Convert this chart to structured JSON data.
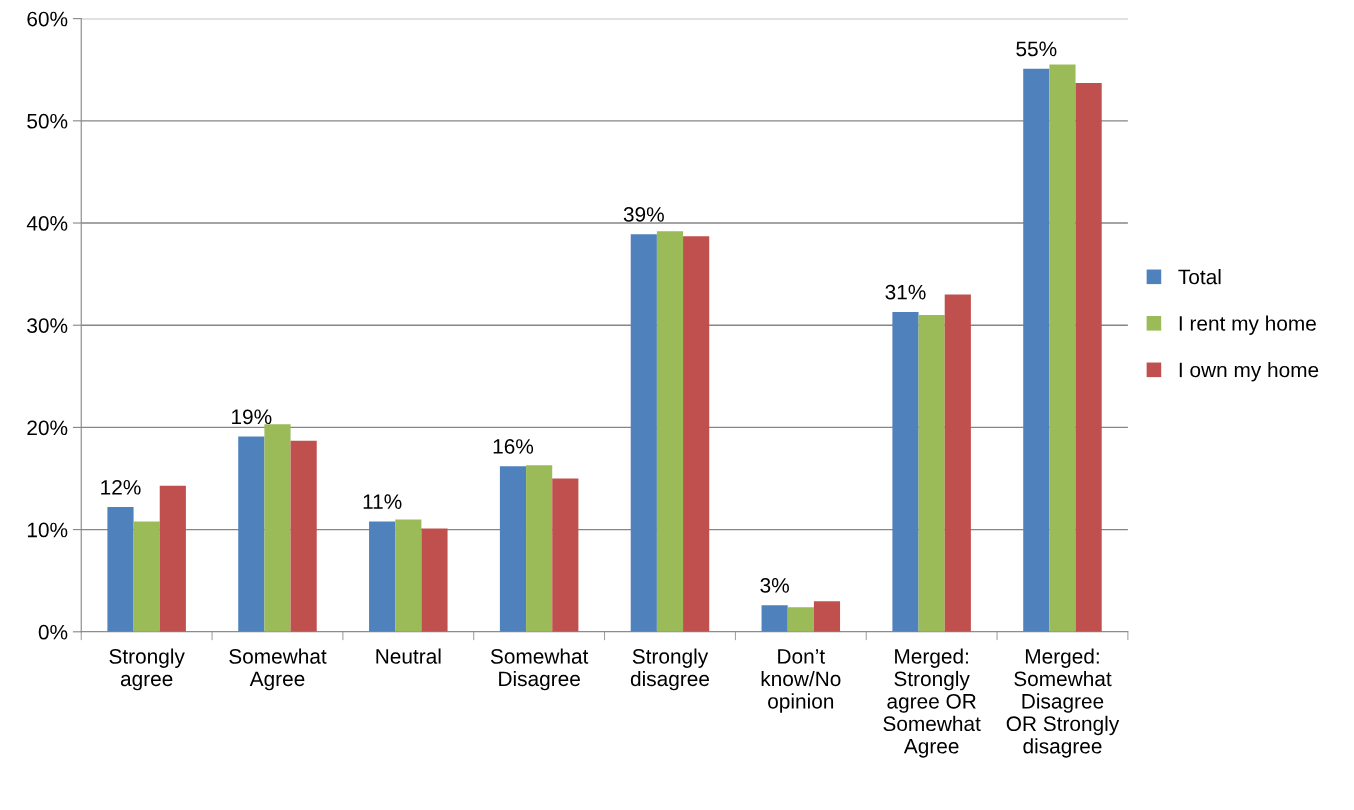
{
  "chart_data": {
    "type": "bar",
    "categories": [
      "Strongly\nagree",
      "Somewhat\nAgree",
      "Neutral",
      "Somewhat\nDisagree",
      "Strongly\ndisagree",
      "Don’t\nknow/No\nopinion",
      "Merged:\nStrongly\nagree OR\nSomewhat\nAgree",
      "Merged:\nSomewhat\nDisagree\nOR Strongly\ndisagree"
    ],
    "series": [
      {
        "name": "Total",
        "color": "#4f81bd",
        "values": [
          12.2,
          19.1,
          10.8,
          16.2,
          38.9,
          2.6,
          31.3,
          55.1
        ],
        "value_labels": [
          "12%",
          "19%",
          "11%",
          "16%",
          "39%",
          "3%",
          "31%",
          "55%"
        ]
      },
      {
        "name": "I rent my home",
        "color": "#9bbb59",
        "values": [
          10.8,
          20.3,
          11.0,
          16.3,
          39.2,
          2.4,
          31.0,
          55.5
        ]
      },
      {
        "name": "I own my home",
        "color": "#c0504d",
        "values": [
          14.3,
          18.7,
          10.1,
          15.0,
          38.7,
          3.0,
          33.0,
          53.7
        ]
      }
    ],
    "ylim": [
      0,
      60
    ],
    "yticks": [
      {
        "value": 0,
        "label": "0%"
      },
      {
        "value": 10,
        "label": "10%"
      },
      {
        "value": 20,
        "label": "20%"
      },
      {
        "value": 30,
        "label": "30%"
      },
      {
        "value": 40,
        "label": "40%"
      },
      {
        "value": 50,
        "label": "50%"
      },
      {
        "value": 60,
        "label": "60%"
      }
    ],
    "grid": "y",
    "legend": "right"
  }
}
